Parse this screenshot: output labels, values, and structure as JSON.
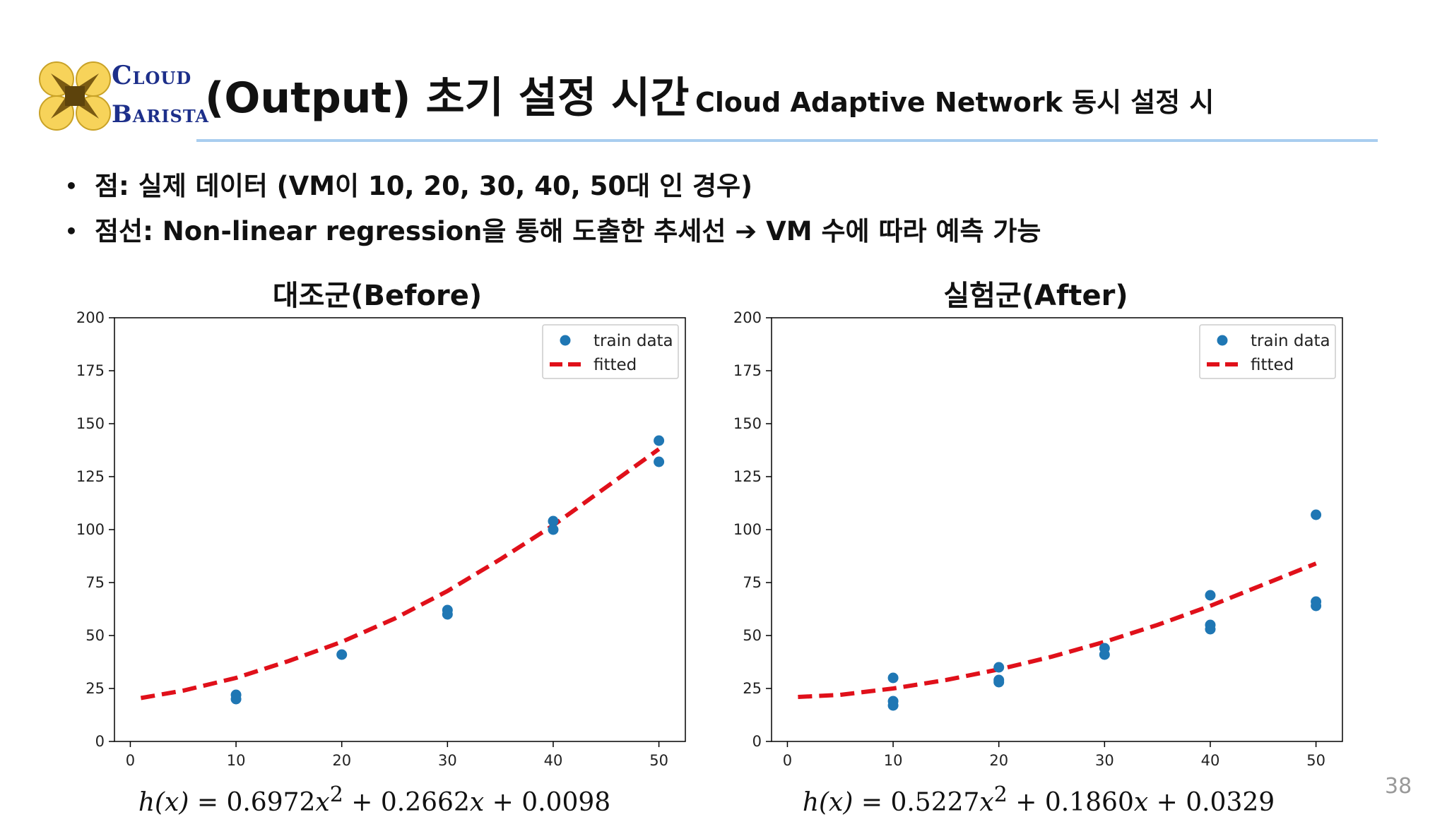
{
  "header": {
    "logo": {
      "cloud_big": "C",
      "cloud_rest": "LOUD",
      "barista_big": "B",
      "barista_rest": "ARISTA"
    },
    "title": "(Output) 초기 설정 시간",
    "subtitle": "- Cloud Adaptive Network 동시 설정 시"
  },
  "bullets": [
    "점: 실제 데이터 (VM이 10, 20, 30, 40, 50대 인 경우)",
    "점선: Non-linear regression을 통해 도출한 추세선 ➔ VM 수에 따라 예측 가능"
  ],
  "page_number": "38",
  "colors": {
    "points": "#1f77b4",
    "fitted": "#e0101a",
    "accent_rule": "#a9cdef"
  },
  "chart_data": [
    {
      "type": "scatter",
      "title": "대조군(Before)",
      "xlim": [
        -1.5,
        52.5
      ],
      "ylim": [
        0,
        200
      ],
      "xticks": [
        0,
        10,
        20,
        30,
        40,
        50
      ],
      "yticks": [
        0,
        25,
        50,
        75,
        100,
        125,
        150,
        175,
        200
      ],
      "legend_position": "top-right",
      "legend": [
        "train data",
        "fitted"
      ],
      "series": [
        {
          "name": "train data",
          "kind": "points",
          "x": [
            10,
            10,
            20,
            30,
            30,
            40,
            40,
            50,
            50
          ],
          "y": [
            22,
            20,
            41,
            62,
            60,
            104,
            100,
            142,
            132
          ]
        },
        {
          "name": "fitted",
          "kind": "line",
          "x": [
            1,
            5,
            10,
            15,
            20,
            25,
            30,
            35,
            40,
            45,
            50
          ],
          "y": [
            20.5,
            24,
            30,
            38,
            47,
            58,
            71,
            86,
            102,
            120,
            138
          ]
        }
      ],
      "formula": {
        "lhs": "h(x)",
        "eq": " = 0.6972",
        "var": "x",
        "pow": "2",
        "rest1": " + 0.2662",
        "rest2": " + 0.0098"
      }
    },
    {
      "type": "scatter",
      "title": "실험군(After)",
      "xlim": [
        -1.5,
        52.5
      ],
      "ylim": [
        0,
        200
      ],
      "xticks": [
        0,
        10,
        20,
        30,
        40,
        50
      ],
      "yticks": [
        0,
        25,
        50,
        75,
        100,
        125,
        150,
        175,
        200
      ],
      "legend_position": "top-right",
      "legend": [
        "train data",
        "fitted"
      ],
      "series": [
        {
          "name": "train data",
          "kind": "points",
          "x": [
            10,
            10,
            10,
            20,
            20,
            20,
            30,
            30,
            40,
            40,
            40,
            50,
            50,
            50
          ],
          "y": [
            30,
            19,
            17,
            35,
            29,
            28,
            44,
            41,
            69,
            55,
            53,
            107,
            66,
            64
          ]
        },
        {
          "name": "fitted",
          "kind": "line",
          "x": [
            1,
            5,
            10,
            15,
            20,
            25,
            30,
            35,
            40,
            45,
            50
          ],
          "y": [
            21,
            22,
            25,
            29,
            34,
            40,
            47,
            55,
            64,
            74,
            84
          ]
        }
      ],
      "formula": {
        "lhs": "h(x)",
        "eq": " = 0.5227",
        "var": "x",
        "pow": "2",
        "rest1": " + 0.1860",
        "rest2": " + 0.0329"
      }
    }
  ]
}
